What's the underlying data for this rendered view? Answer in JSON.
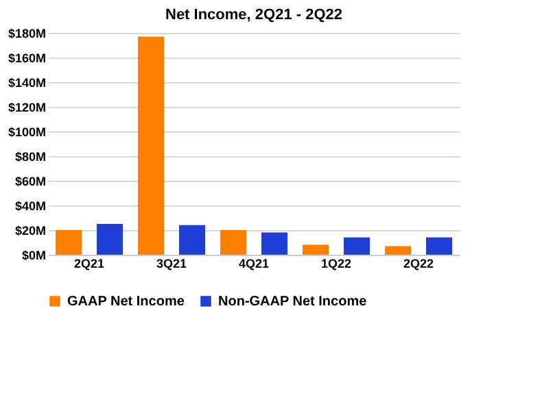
{
  "chart_data": {
    "type": "bar",
    "title": "Net Income, 2Q21 - 2Q22",
    "categories": [
      "2Q21",
      "3Q21",
      "4Q21",
      "1Q22",
      "2Q22"
    ],
    "series": [
      {
        "name": "GAAP Net Income",
        "color": "#ff7f00",
        "values": [
          20,
          177,
          20,
          8,
          7
        ]
      },
      {
        "name": "Non-GAAP Net Income",
        "color": "#1f3fd6",
        "values": [
          25,
          24,
          18,
          14,
          14
        ]
      }
    ],
    "ylim": [
      0,
      180
    ],
    "yticks": [
      {
        "value": 0,
        "label": "$0M"
      },
      {
        "value": 20,
        "label": "$20M"
      },
      {
        "value": 40,
        "label": "$40M"
      },
      {
        "value": 60,
        "label": "$60M"
      },
      {
        "value": 80,
        "label": "$80M"
      },
      {
        "value": 100,
        "label": "$100M"
      },
      {
        "value": 120,
        "label": "$120M"
      },
      {
        "value": 140,
        "label": "$140M"
      },
      {
        "value": 160,
        "label": "$160M"
      },
      {
        "value": 180,
        "label": "$180M"
      }
    ],
    "grid": "y",
    "legend": "bottom"
  }
}
